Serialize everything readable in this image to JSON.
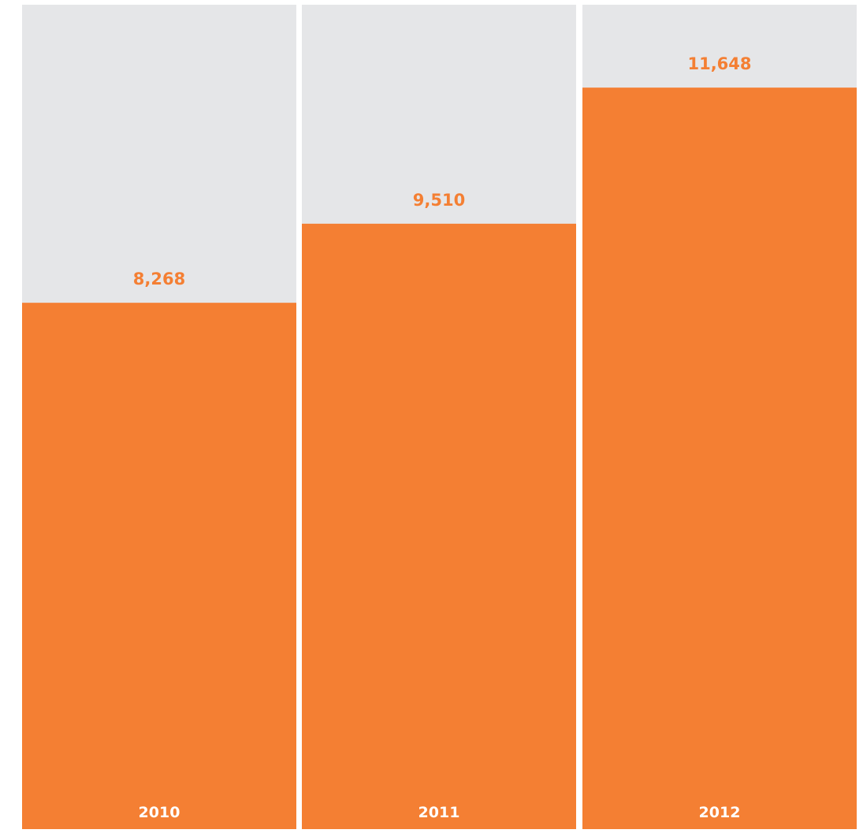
{
  "chart_data": {
    "type": "bar",
    "categories": [
      "2010",
      "2011",
      "2012"
    ],
    "values": [
      8268,
      9510,
      11648
    ],
    "value_labels": [
      "8,268",
      "9,510",
      "11,648"
    ],
    "title": "",
    "xlabel": "",
    "ylabel": "",
    "ylim": [
      0,
      12950
    ],
    "grid": false,
    "legend": "none",
    "colors": {
      "bar": "#f47f33",
      "column_background": "#e5e6e8",
      "value_label": "#f47f33",
      "category_label": "#ffffff"
    }
  }
}
